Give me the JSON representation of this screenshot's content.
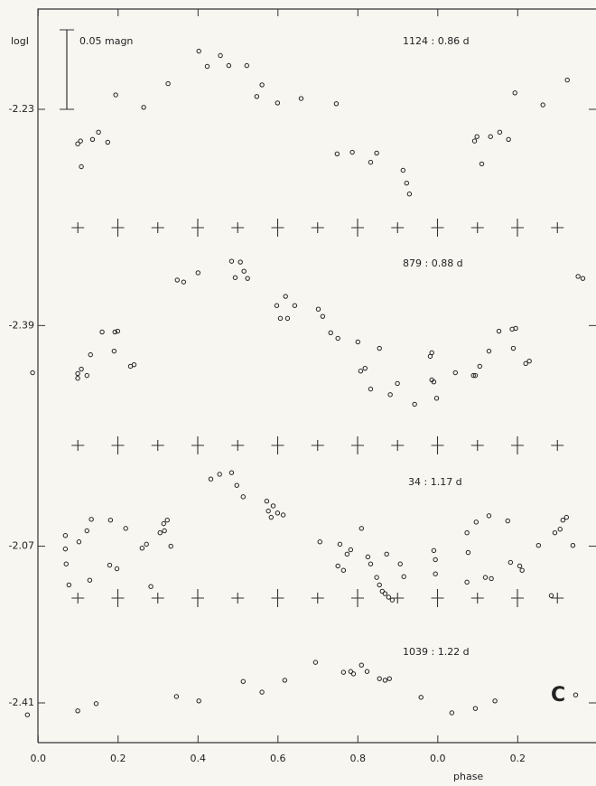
{
  "chart_data": [
    {
      "type": "scatter",
      "ylabel": "logI",
      "scale_bar": "0.05 magn",
      "label": "1124 : 0.86 d",
      "color": "#222",
      "xlim": [
        -0.03,
        1.39
      ],
      "ylim": [
        -2.2595,
        -2.205
      ],
      "yticks": [
        -2.23
      ],
      "x": [
        0.402,
        0.423,
        0.456,
        0.477,
        0.522,
        0.325,
        0.194,
        0.264,
        0.56,
        0.547,
        0.599,
        0.658,
        0.746,
        0.099,
        0.106,
        0.108,
        0.136,
        0.151,
        0.174,
        0.748,
        0.786,
        0.832,
        0.847,
        0.913,
        0.922,
        0.929,
        1.193,
        1.263,
        1.324,
        1.092,
        1.098,
        1.11,
        1.132,
        1.155,
        1.177
      ],
      "values": [
        -2.2155,
        -2.2193,
        -2.2166,
        -2.2191,
        -2.2191,
        -2.2236,
        -2.2264,
        -2.2295,
        -2.2239,
        -2.2268,
        -2.2284,
        -2.2273,
        -2.2286,
        -2.2386,
        -2.2379,
        -2.2443,
        -2.2375,
        -2.2357,
        -2.2382,
        -2.2411,
        -2.2407,
        -2.2432,
        -2.2409,
        -2.2452,
        -2.2484,
        -2.2511,
        -2.2259,
        -2.2289,
        -2.2227,
        -2.2379,
        -2.2368,
        -2.2436,
        -2.2368,
        -2.2357,
        -2.2375
      ]
    },
    {
      "type": "scatter",
      "label": "879 : 0.88 d",
      "color": "#222",
      "xlim": [
        -0.03,
        1.39
      ],
      "ylim": [
        -2.42,
        -2.3655
      ],
      "yticks": [
        -2.39
      ],
      "x": [
        -0.014,
        0.099,
        0.099,
        0.108,
        0.122,
        0.131,
        0.16,
        0.192,
        0.199,
        0.19,
        0.231,
        0.24,
        0.348,
        0.364,
        0.4,
        0.484,
        0.506,
        0.493,
        0.515,
        0.524,
        0.597,
        0.619,
        0.606,
        0.624,
        0.642,
        0.701,
        0.712,
        0.732,
        0.75,
        0.8,
        0.807,
        0.818,
        0.832,
        0.854,
        0.881,
        0.899,
        0.942,
        0.981,
        0.985,
        0.985,
        0.99,
        0.997,
        1.044,
        1.089,
        1.094,
        1.105,
        1.128,
        1.153,
        1.186,
        1.195,
        1.189,
        1.22,
        1.229,
        1.351,
        1.363
      ],
      "values": [
        -2.4018,
        -2.4032,
        -2.402,
        -2.4009,
        -2.4025,
        -2.3973,
        -2.3916,
        -2.3916,
        -2.3914,
        -2.3964,
        -2.4002,
        -2.3998,
        -2.3786,
        -2.3791,
        -2.3768,
        -2.3739,
        -2.3741,
        -2.378,
        -2.3764,
        -2.3782,
        -2.385,
        -2.3827,
        -2.3882,
        -2.3882,
        -2.385,
        -2.3859,
        -2.3877,
        -2.3918,
        -2.3932,
        -2.3941,
        -2.4014,
        -2.4007,
        -2.4059,
        -2.3957,
        -2.4073,
        -2.4045,
        -2.4097,
        -2.3977,
        -2.3968,
        -2.4036,
        -2.4041,
        -2.4082,
        -2.4018,
        -2.4025,
        -2.4025,
        -2.4002,
        -2.3964,
        -2.3914,
        -2.3909,
        -2.3907,
        -2.3957,
        -2.3995,
        -2.3989,
        -2.3777,
        -2.3782
      ]
    },
    {
      "type": "scatter",
      "label": "34 : 1.17 d",
      "color": "#222",
      "xlim": [
        -0.03,
        1.39
      ],
      "ylim": [
        -2.0845,
        -2.0445
      ],
      "yticks": [
        -2.07
      ],
      "x": [
        0.068,
        0.068,
        0.07,
        0.077,
        0.102,
        0.122,
        0.129,
        0.133,
        0.181,
        0.179,
        0.197,
        0.219,
        0.26,
        0.271,
        0.282,
        0.305,
        0.316,
        0.314,
        0.323,
        0.332,
        0.432,
        0.454,
        0.484,
        0.497,
        0.513,
        0.572,
        0.576,
        0.583,
        0.588,
        0.599,
        0.613,
        0.705,
        0.755,
        0.75,
        0.764,
        0.773,
        0.782,
        0.809,
        0.825,
        0.832,
        0.847,
        0.854,
        0.861,
        0.868,
        0.877,
        0.886,
        0.872,
        0.906,
        0.915,
        0.99,
        0.994,
        0.994,
        1.073,
        1.076,
        1.073,
        1.096,
        1.119,
        1.128,
        1.134,
        1.175,
        1.182,
        1.205,
        1.211,
        1.252,
        1.284,
        1.293,
        1.306,
        1.313,
        1.322,
        1.338
      ],
      "values": [
        -2.0673,
        -2.0707,
        -2.0745,
        -2.0798,
        -2.0689,
        -2.0661,
        -2.0786,
        -2.0632,
        -2.0634,
        -2.0748,
        -2.0757,
        -2.0655,
        -2.0705,
        -2.0695,
        -2.0802,
        -2.0666,
        -2.0661,
        -2.0643,
        -2.0634,
        -2.07,
        -2.053,
        -2.0518,
        -2.0514,
        -2.0546,
        -2.0575,
        -2.0586,
        -2.0611,
        -2.0627,
        -2.0598,
        -2.0616,
        -2.0621,
        -2.0689,
        -2.0695,
        -2.075,
        -2.0761,
        -2.072,
        -2.0709,
        -2.0655,
        -2.0727,
        -2.0745,
        -2.0779,
        -2.0798,
        -2.0814,
        -2.082,
        -2.0829,
        -2.0836,
        -2.072,
        -2.0745,
        -2.0777,
        -2.0711,
        -2.0734,
        -2.077,
        -2.0666,
        -2.0716,
        -2.0791,
        -2.0639,
        -2.0779,
        -2.0623,
        -2.0782,
        -2.0636,
        -2.0741,
        -2.075,
        -2.0761,
        -2.0698,
        -2.0825,
        -2.0666,
        -2.0657,
        -2.0634,
        -2.0627,
        -2.0698
      ]
    },
    {
      "type": "scatter",
      "label": "1039 : 1.22 d",
      "annotation": "C",
      "xlabel": "phase",
      "color": "#222",
      "xlim": [
        -0.03,
        1.39
      ],
      "ylim": [
        -2.42,
        -2.385
      ],
      "yticks": [
        -2.41
      ],
      "xticks": [
        {
          "value": 0,
          "label": "0.0"
        },
        0.2,
        0.4,
        0.6,
        0.8,
        {
          "value": 1.0,
          "label": "0.0"
        },
        {
          "value": 1.2,
          "label": "0.2"
        }
      ],
      "x": [
        -0.027,
        0.099,
        0.145,
        0.346,
        0.402,
        0.513,
        0.56,
        0.617,
        0.694,
        0.764,
        0.782,
        0.789,
        0.809,
        0.823,
        0.854,
        0.868,
        0.879,
        0.958,
        1.035,
        1.094,
        1.143,
        1.345
      ],
      "values": [
        -2.413,
        -2.412,
        -2.4102,
        -2.4084,
        -2.4095,
        -2.4046,
        -2.4073,
        -2.4043,
        -2.3998,
        -2.4023,
        -2.4021,
        -2.4027,
        -2.4005,
        -2.4021,
        -2.4039,
        -2.4043,
        -2.4039,
        -2.4086,
        -2.4125,
        -2.4114,
        -2.4095,
        -2.408
      ]
    }
  ]
}
